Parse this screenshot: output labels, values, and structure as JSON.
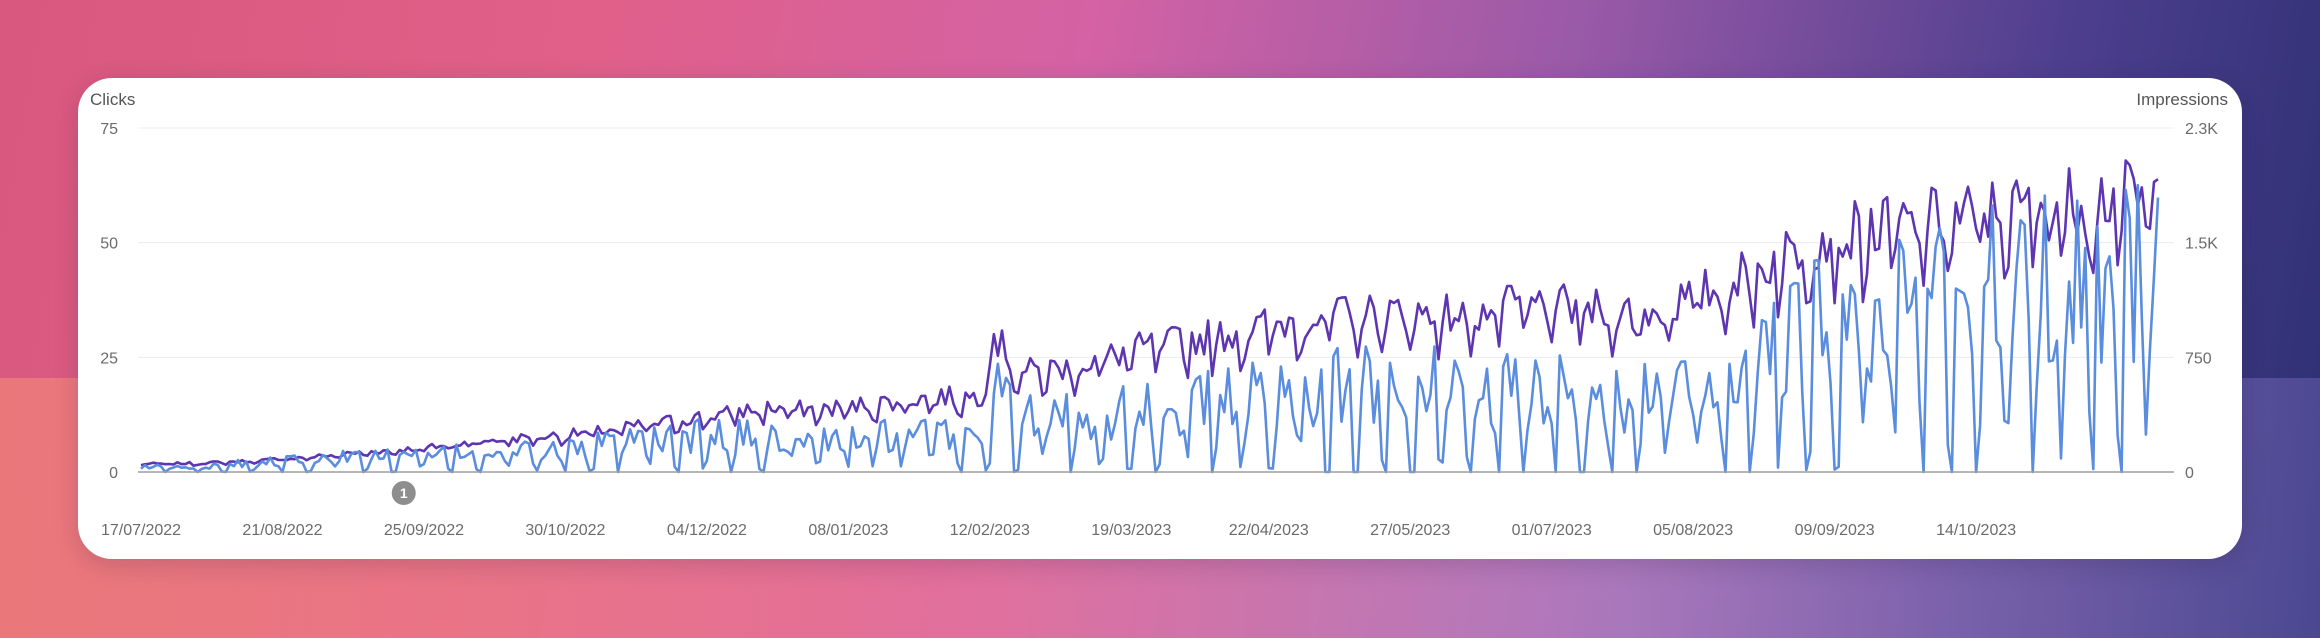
{
  "chart_data": {
    "type": "line",
    "left_axis_title": "Clicks",
    "right_axis_title": "Impressions",
    "left_ticks": [
      0,
      25,
      50,
      75
    ],
    "left_tick_labels": [
      "0",
      "25",
      "50",
      "75"
    ],
    "right_ticks": [
      0,
      750,
      1500,
      2250
    ],
    "right_tick_labels": [
      "0",
      "750",
      "1.5K",
      "2.3K"
    ],
    "ylim_left": [
      0,
      75
    ],
    "ylim_right": [
      0,
      2250
    ],
    "x_range": [
      "2022-07-17",
      "2023-11-28"
    ],
    "x_ticks": [
      "2022-07-17",
      "2022-08-21",
      "2022-09-25",
      "2022-10-30",
      "2022-12-04",
      "2023-01-08",
      "2023-02-12",
      "2023-03-19",
      "2023-04-22",
      "2023-05-27",
      "2023-07-01",
      "2023-08-05",
      "2023-09-09",
      "2023-10-14"
    ],
    "x_tick_labels": [
      "17/07/2022",
      "21/08/2022",
      "25/09/2022",
      "30/10/2022",
      "04/12/2022",
      "08/01/2023",
      "12/02/2023",
      "19/03/2023",
      "22/04/2023",
      "27/05/2023",
      "01/07/2023",
      "05/08/2023",
      "09/09/2023",
      "14/10/2023"
    ],
    "grid": true,
    "annotation": {
      "x": "2022-09-20",
      "label": "1"
    },
    "series": [
      {
        "axis": "right",
        "color": "#5e35b1",
        "points": [
          [
            "2022-07-17",
            50
          ],
          [
            "2022-07-31",
            55
          ],
          [
            "2022-08-14",
            70
          ],
          [
            "2022-08-28",
            95
          ],
          [
            "2022-09-11",
            125
          ],
          [
            "2022-09-25",
            150
          ],
          [
            "2022-10-09",
            195
          ],
          [
            "2022-10-23",
            220
          ],
          [
            "2022-11-06",
            250
          ],
          [
            "2022-11-20",
            300
          ],
          [
            "2022-12-04",
            350
          ],
          [
            "2022-12-18",
            400
          ],
          [
            "2023-01-01",
            390
          ],
          [
            "2023-01-15",
            430
          ],
          [
            "2023-01-29",
            470
          ],
          [
            "2023-02-10",
            470
          ],
          [
            "2023-02-12",
            900
          ],
          [
            "2023-02-19",
            620
          ],
          [
            "2023-03-05",
            660
          ],
          [
            "2023-03-19",
            760
          ],
          [
            "2023-04-02",
            820
          ],
          [
            "2023-04-16",
            880
          ],
          [
            "2023-04-30",
            960
          ],
          [
            "2023-05-14",
            980
          ],
          [
            "2023-05-28",
            1000
          ],
          [
            "2023-06-11",
            980
          ],
          [
            "2023-06-25",
            1050
          ],
          [
            "2023-07-09",
            1020
          ],
          [
            "2023-07-23",
            990
          ],
          [
            "2023-08-06",
            1100
          ],
          [
            "2023-08-20",
            1250
          ],
          [
            "2023-09-03",
            1450
          ],
          [
            "2023-09-17",
            1500
          ],
          [
            "2023-10-01",
            1560
          ],
          [
            "2023-10-15",
            1620
          ],
          [
            "2023-10-29",
            1650
          ],
          [
            "2023-11-12",
            1720
          ],
          [
            "2023-11-28",
            1720
          ]
        ]
      },
      {
        "axis": "left",
        "color": "#5b8ddf",
        "points": [
          [
            "2022-07-17",
            1
          ],
          [
            "2022-07-31",
            1
          ],
          [
            "2022-08-14",
            2
          ],
          [
            "2022-08-28",
            3
          ],
          [
            "2022-09-11",
            3
          ],
          [
            "2022-09-25",
            3
          ],
          [
            "2022-10-09",
            4
          ],
          [
            "2022-10-23",
            4
          ],
          [
            "2022-11-06",
            5
          ],
          [
            "2022-11-20",
            6
          ],
          [
            "2022-12-04",
            7
          ],
          [
            "2022-12-18",
            7
          ],
          [
            "2023-01-01",
            6
          ],
          [
            "2023-01-15",
            7
          ],
          [
            "2023-01-29",
            7
          ],
          [
            "2023-02-10",
            7
          ],
          [
            "2023-02-12",
            18
          ],
          [
            "2023-02-19",
            10
          ],
          [
            "2023-03-05",
            11
          ],
          [
            "2023-03-19",
            12
          ],
          [
            "2023-04-02",
            13
          ],
          [
            "2023-04-16",
            14
          ],
          [
            "2023-04-30",
            16
          ],
          [
            "2023-05-14",
            16
          ],
          [
            "2023-05-28",
            17
          ],
          [
            "2023-06-11",
            16
          ],
          [
            "2023-06-25",
            16
          ],
          [
            "2023-07-09",
            15
          ],
          [
            "2023-07-23",
            14
          ],
          [
            "2023-08-06",
            16
          ],
          [
            "2023-08-20",
            20
          ],
          [
            "2023-09-03",
            27
          ],
          [
            "2023-09-17",
            30
          ],
          [
            "2023-10-01",
            34
          ],
          [
            "2023-10-15",
            35
          ],
          [
            "2023-10-29",
            36
          ],
          [
            "2023-11-12",
            38
          ],
          [
            "2023-11-28",
            38
          ]
        ]
      }
    ]
  }
}
